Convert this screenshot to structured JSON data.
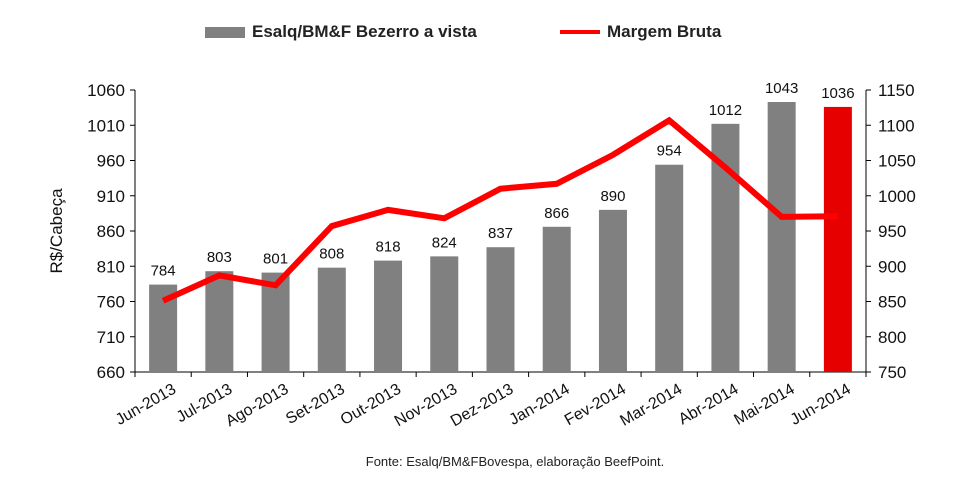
{
  "chart_data": {
    "type": "bar",
    "title": "",
    "categories": [
      "Jun-2013",
      "Jul-2013",
      "Ago-2013",
      "Set-2013",
      "Out-2013",
      "Nov-2013",
      "Dez-2013",
      "Jan-2014",
      "Fev-2014",
      "Mar-2014",
      "Abr-2014",
      "Mai-2014",
      "Jun-2014"
    ],
    "series": [
      {
        "name": "Esalq/BM&F Bezerro a vista",
        "type": "bar",
        "axis": "left",
        "values": [
          784,
          803,
          801,
          808,
          818,
          824,
          837,
          866,
          890,
          954,
          1012,
          1043,
          1036
        ],
        "colors": [
          "#808080",
          "#808080",
          "#808080",
          "#808080",
          "#808080",
          "#808080",
          "#808080",
          "#808080",
          "#808080",
          "#808080",
          "#808080",
          "#808080",
          "#e60000"
        ]
      },
      {
        "name": "Margem Bruta",
        "type": "line",
        "axis": "right",
        "color": "#ff0000",
        "values": [
          851,
          887,
          873,
          957,
          980,
          968,
          1010,
          1017,
          1058,
          1107,
          1040,
          970,
          971
        ]
      }
    ],
    "ylabel": "R$/Cabeça",
    "ylim": [
      660,
      1060
    ],
    "yticks": [
      660,
      710,
      760,
      810,
      860,
      910,
      960,
      1010,
      1060
    ],
    "y2lim": [
      750,
      1150
    ],
    "y2ticks": [
      750,
      800,
      850,
      900,
      950,
      1000,
      1050,
      1100,
      1150
    ],
    "source": "Fonte: Esalq/BM&FBovespa, elaboração BeefPoint."
  },
  "legend": {
    "bar_label": "Esalq/BM&F Bezerro a vista",
    "line_label": "Margem Bruta"
  }
}
